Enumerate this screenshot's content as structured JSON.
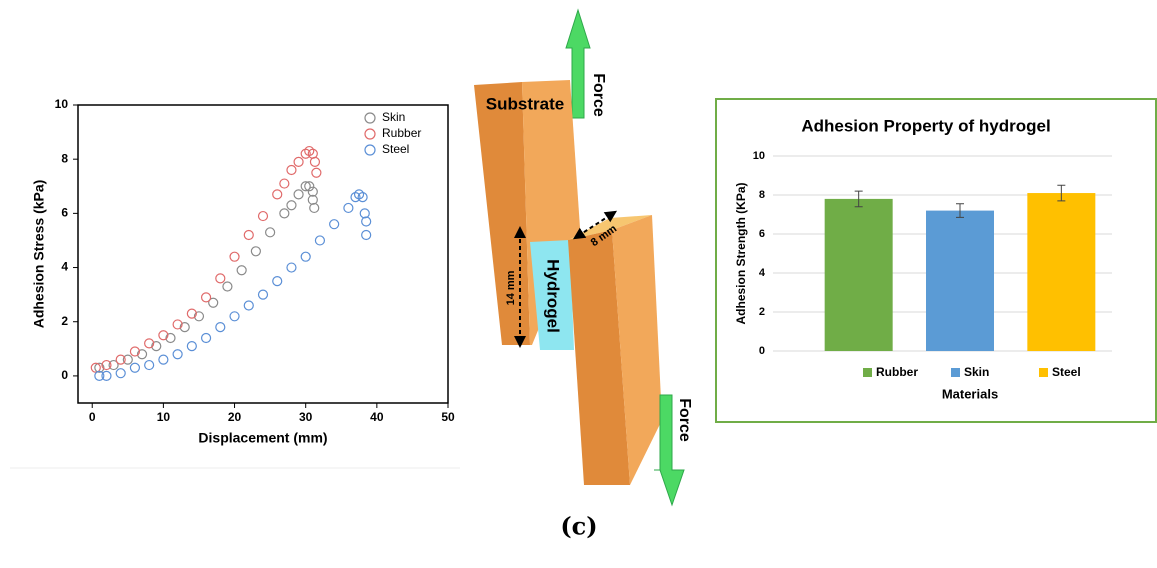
{
  "chart_data": [
    {
      "type": "scatter",
      "xlabel": "Displacement (mm)",
      "ylabel": "Adhesion Stress (kPa)",
      "xlim": [
        -2,
        50
      ],
      "ylim": [
        -1,
        10
      ],
      "xticks": [
        0,
        10,
        20,
        30,
        40,
        50
      ],
      "yticks": [
        0,
        2,
        4,
        6,
        8,
        10
      ],
      "legend": "top-right",
      "series": [
        {
          "name": "Skin",
          "color": "#8a8a8a",
          "x": [
            1,
            3,
            5,
            7,
            9,
            11,
            13,
            15,
            17,
            19,
            21,
            23,
            25,
            27,
            28,
            29,
            30,
            30.5,
            31,
            31,
            31.2
          ],
          "values": [
            0.3,
            0.4,
            0.6,
            0.8,
            1.1,
            1.4,
            1.8,
            2.2,
            2.7,
            3.3,
            3.9,
            4.6,
            5.3,
            6.0,
            6.3,
            6.7,
            7.0,
            7.0,
            6.8,
            6.5,
            6.2
          ]
        },
        {
          "name": "Rubber",
          "color": "#e06a6a",
          "x": [
            0.5,
            2,
            4,
            6,
            8,
            10,
            12,
            14,
            16,
            18,
            20,
            22,
            24,
            26,
            27,
            28,
            29,
            30,
            30.5,
            31,
            31.3,
            31.5
          ],
          "values": [
            0.3,
            0.4,
            0.6,
            0.9,
            1.2,
            1.5,
            1.9,
            2.3,
            2.9,
            3.6,
            4.4,
            5.2,
            5.9,
            6.7,
            7.1,
            7.6,
            7.9,
            8.2,
            8.3,
            8.2,
            7.9,
            7.5
          ]
        },
        {
          "name": "Steel",
          "color": "#5b8fd6",
          "x": [
            1,
            2,
            4,
            6,
            8,
            10,
            12,
            14,
            16,
            18,
            20,
            22,
            24,
            26,
            28,
            30,
            32,
            34,
            36,
            37,
            37.5,
            38,
            38.3,
            38.5,
            38.5
          ],
          "values": [
            0,
            0,
            0.1,
            0.3,
            0.4,
            0.6,
            0.8,
            1.1,
            1.4,
            1.8,
            2.2,
            2.6,
            3.0,
            3.5,
            4.0,
            4.4,
            5.0,
            5.6,
            6.2,
            6.6,
            6.7,
            6.6,
            6.0,
            5.7,
            5.2
          ]
        }
      ]
    },
    {
      "type": "bar",
      "title": "Adhesion Property of hydrogel",
      "xlabel": "Materials",
      "ylabel": "Adhesion Strength (KPa)",
      "categories": [
        "Rubber",
        "Skin",
        "Steel"
      ],
      "values": [
        7.8,
        7.2,
        8.1
      ],
      "errors": [
        0.4,
        0.35,
        0.4
      ],
      "colors": [
        "#70ad47",
        "#5b9bd5",
        "#ffc000"
      ],
      "ylim": [
        0,
        10
      ],
      "yticks": [
        0,
        2,
        4,
        6,
        8,
        10
      ],
      "grid": true,
      "legend": "bottom"
    }
  ],
  "diagram": {
    "force_top": "Force",
    "force_bottom": "Force",
    "substrate": "Substrate",
    "hydrogel": "Hydrogel",
    "height": "14 mm",
    "width": "8 mm"
  },
  "caption": "(c)"
}
